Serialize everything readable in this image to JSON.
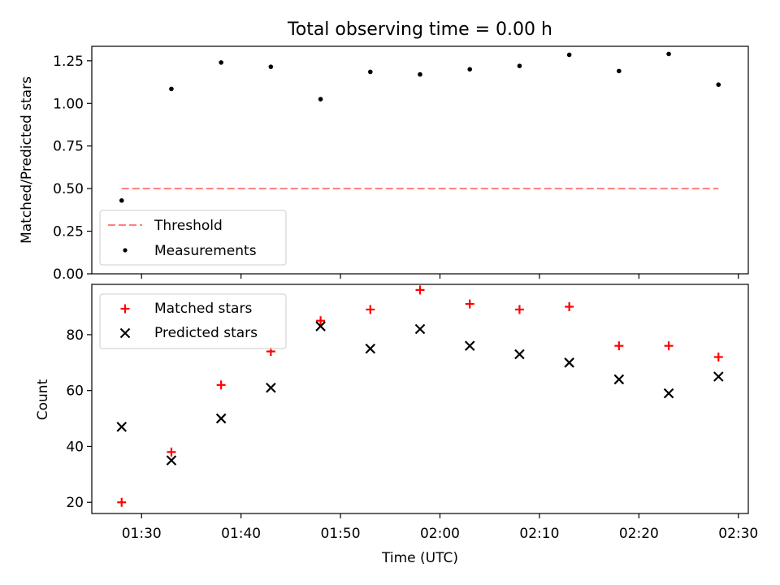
{
  "chart_data": [
    {
      "type": "scatter",
      "title": "Total observing time = 0.00 h",
      "ylabel": "Matched/Predicted stars",
      "xlabel": "",
      "ylim": [
        0.0,
        1.335
      ],
      "yticks": [
        0.0,
        0.25,
        0.5,
        0.75,
        1.0,
        1.25
      ],
      "ytick_labels": [
        "0.00",
        "0.25",
        "0.50",
        "0.75",
        "1.00",
        "1.25"
      ],
      "grid": false,
      "legend_position": "lower-left",
      "series": [
        {
          "name": "Threshold",
          "kind": "dashed-line",
          "color": "#ff7f7f",
          "x": [
            "01:28",
            "02:28"
          ],
          "values": [
            0.5,
            0.5
          ]
        },
        {
          "name": "Measurements",
          "kind": "dot",
          "color": "#000000",
          "x": [
            "01:28",
            "01:33",
            "01:38",
            "01:43",
            "01:48",
            "01:53",
            "01:58",
            "02:03",
            "02:08",
            "02:13",
            "02:18",
            "02:23",
            "02:28"
          ],
          "values": [
            0.43,
            1.085,
            1.24,
            1.215,
            1.025,
            1.185,
            1.17,
            1.2,
            1.22,
            1.285,
            1.19,
            1.29,
            1.11
          ]
        }
      ]
    },
    {
      "type": "scatter",
      "title": "",
      "xlabel": "Time (UTC)",
      "ylabel": "Count",
      "xlim": [
        "01:25",
        "02:31"
      ],
      "xticks": [
        "01:30",
        "01:40",
        "01:50",
        "02:00",
        "02:10",
        "02:20",
        "02:30"
      ],
      "ylim": [
        16,
        98
      ],
      "yticks": [
        20,
        40,
        60,
        80
      ],
      "ytick_labels": [
        "20",
        "40",
        "60",
        "80"
      ],
      "grid": false,
      "legend_position": "top-left",
      "series": [
        {
          "name": "Matched stars",
          "kind": "plus",
          "color": "#ff0000",
          "x": [
            "01:28",
            "01:33",
            "01:38",
            "01:43",
            "01:48",
            "01:53",
            "01:58",
            "02:03",
            "02:08",
            "02:13",
            "02:18",
            "02:23",
            "02:28"
          ],
          "values": [
            20,
            38,
            62,
            74,
            85,
            89,
            96,
            91,
            89,
            90,
            76,
            76,
            72
          ]
        },
        {
          "name": "Predicted stars",
          "kind": "cross",
          "color": "#000000",
          "x": [
            "01:28",
            "01:33",
            "01:38",
            "01:43",
            "01:48",
            "01:53",
            "01:58",
            "02:03",
            "02:08",
            "02:13",
            "02:18",
            "02:23",
            "02:28"
          ],
          "values": [
            47,
            35,
            50,
            61,
            83,
            75,
            82,
            76,
            73,
            70,
            64,
            59,
            65
          ]
        }
      ]
    }
  ]
}
